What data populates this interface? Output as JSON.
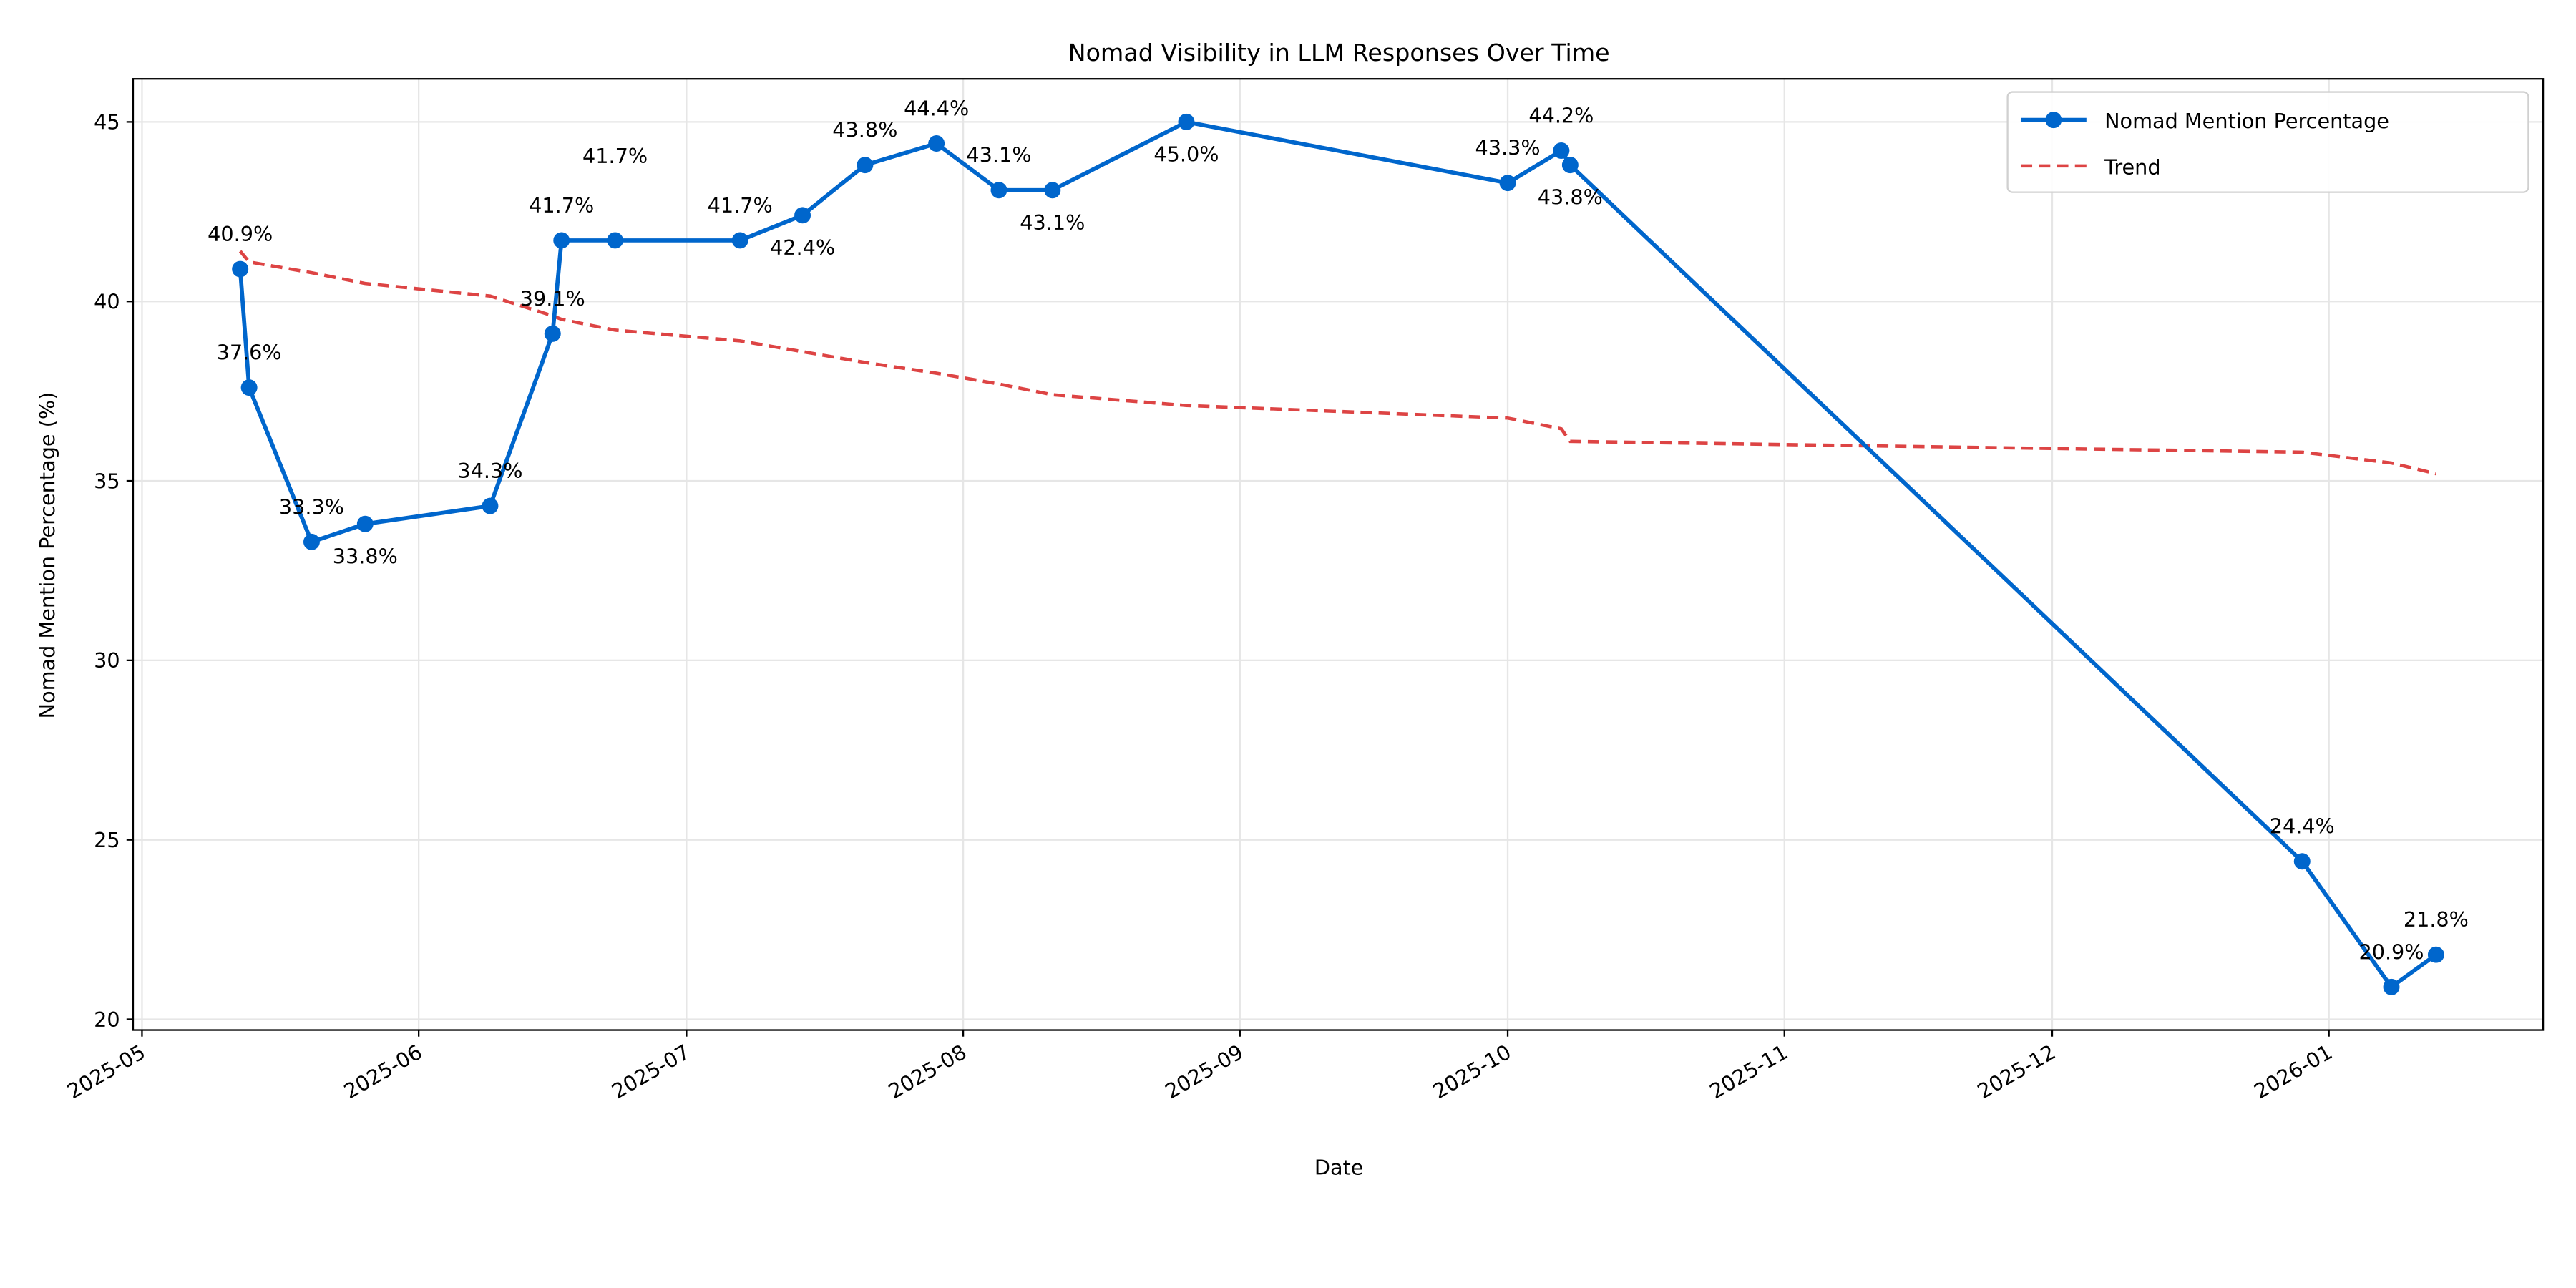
{
  "chart_data": {
    "type": "line",
    "title": "Nomad Visibility in LLM Responses Over Time",
    "xlabel": "Date",
    "ylabel": "Nomad Mention Percentage (%)",
    "xlim": [
      "2025-04-30",
      "2026-01-25"
    ],
    "ylim": [
      19.7,
      46.2
    ],
    "x_ticks": [
      "2025-05",
      "2025-06",
      "2025-07",
      "2025-08",
      "2025-09",
      "2025-10",
      "2025-11",
      "2025-12",
      "2026-01"
    ],
    "y_ticks": [
      20,
      25,
      30,
      35,
      40,
      45
    ],
    "grid": true,
    "legend_position": "top-right",
    "x": [
      "2025-05-12",
      "2025-05-13",
      "2025-05-20",
      "2025-05-26",
      "2025-06-09",
      "2025-06-16",
      "2025-06-17",
      "2025-06-23",
      "2025-07-07",
      "2025-07-14",
      "2025-07-21",
      "2025-07-29",
      "2025-08-05",
      "2025-08-11",
      "2025-08-26",
      "2025-10-01",
      "2025-10-07",
      "2025-10-08",
      "2025-12-29",
      "2026-01-08",
      "2026-01-13"
    ],
    "series": [
      {
        "name": "Nomad Mention Percentage",
        "color": "#0066cc",
        "style": "solid-with-markers",
        "values": [
          40.9,
          37.6,
          33.3,
          33.8,
          34.3,
          39.1,
          41.7,
          41.7,
          41.7,
          42.4,
          43.8,
          44.4,
          43.1,
          43.1,
          45.0,
          43.3,
          44.2,
          43.8,
          24.4,
          20.9,
          21.8
        ],
        "labels": [
          "40.9%",
          "37.6%",
          "33.3%",
          "33.8%",
          "34.3%",
          "39.1%",
          "41.7%",
          "41.7%",
          "41.7%",
          "42.4%",
          "43.8%",
          "44.4%",
          "43.1%",
          "43.1%",
          "45.0%",
          "43.3%",
          "44.2%",
          "43.8%",
          "24.4%",
          "20.9%",
          "21.8%"
        ]
      },
      {
        "name": "Trend",
        "color": "#dd4444",
        "style": "dashed",
        "values": [
          41.4,
          41.1,
          40.8,
          40.5,
          40.15,
          39.6,
          39.5,
          39.2,
          38.9,
          38.6,
          38.3,
          38.0,
          37.7,
          37.4,
          37.1,
          36.75,
          36.45,
          36.1,
          35.8,
          35.5,
          35.2
        ]
      }
    ]
  }
}
